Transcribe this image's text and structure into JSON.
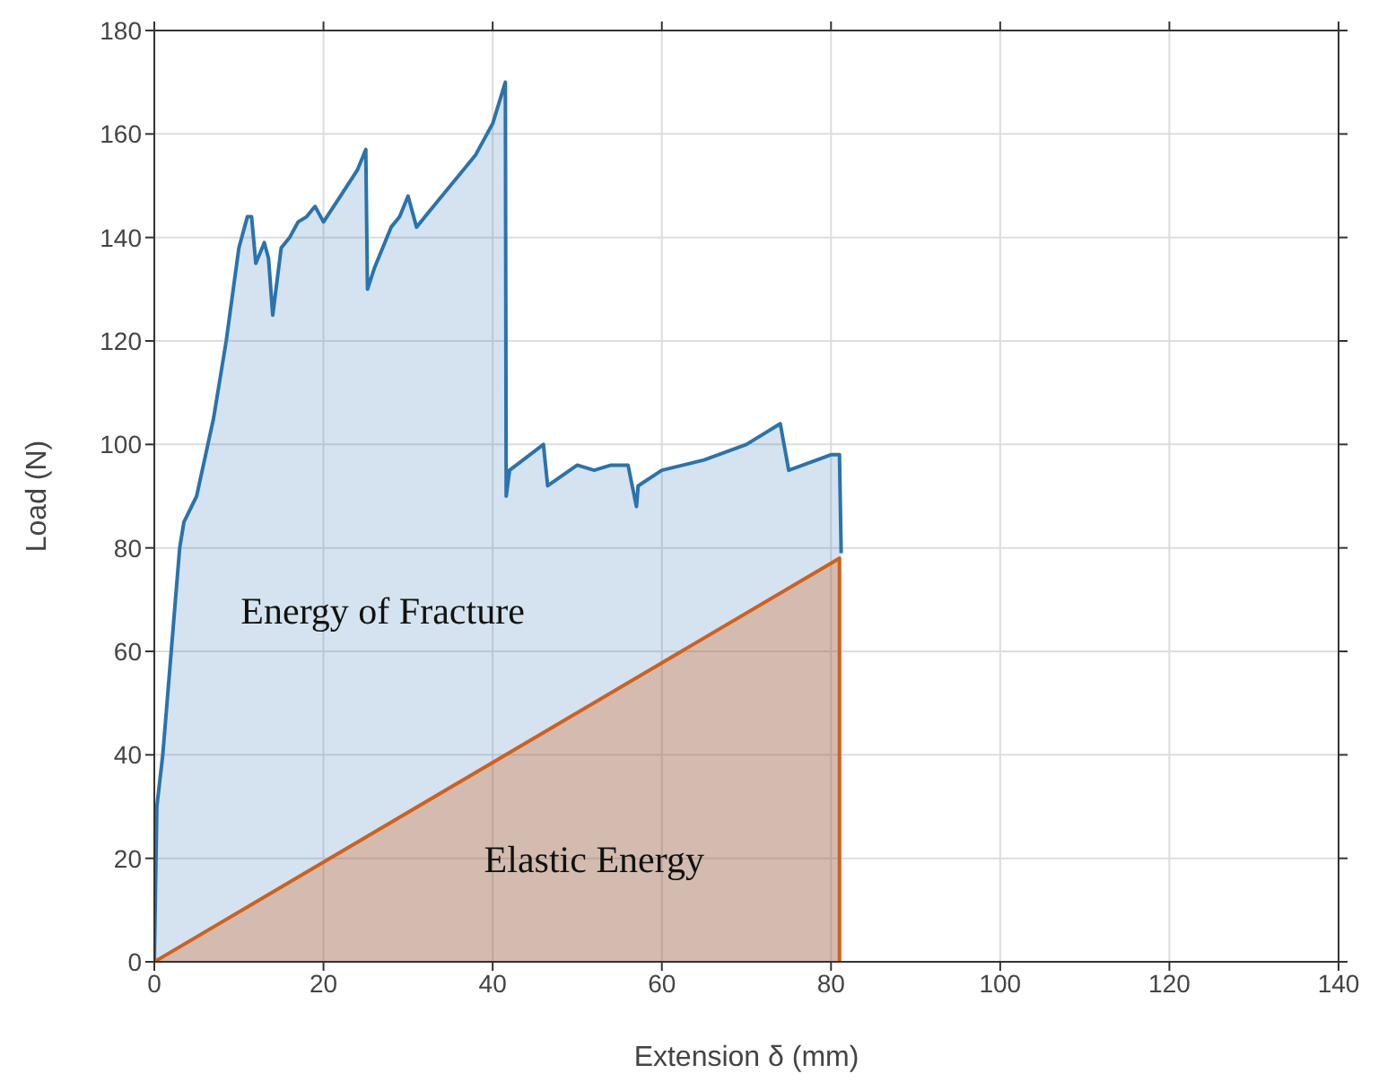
{
  "chart_data": {
    "type": "area",
    "xlabel": "Extension δ (mm)",
    "ylabel": "Load (N)",
    "xlim": [
      0,
      140
    ],
    "xticks": [
      0,
      20,
      40,
      60,
      80,
      100,
      120,
      140
    ],
    "ylim": [
      0,
      180
    ],
    "yticks": [
      0,
      20,
      40,
      60,
      80,
      100,
      120,
      140,
      160,
      180
    ],
    "grid": true,
    "marker": "none",
    "series": [
      {
        "color": "#2a73ad",
        "x": [
          0,
          0.3,
          1,
          2,
          3,
          3.5,
          5,
          7,
          8.5,
          10,
          11,
          11.5,
          12,
          13,
          13.5,
          14,
          15,
          16,
          17,
          18,
          19,
          20,
          22,
          24,
          25,
          25.2,
          26,
          28,
          29,
          30,
          31,
          33,
          36,
          38,
          40,
          41.5,
          41.6,
          42,
          46,
          46.5,
          50,
          52,
          54,
          56,
          57,
          57.2,
          60,
          65,
          70,
          74,
          75,
          80,
          81,
          81.2
        ],
        "values": [
          0,
          30,
          40,
          60,
          80,
          85,
          90,
          105,
          120,
          138,
          144,
          144,
          135,
          139,
          136,
          125,
          138,
          140,
          143,
          144,
          146,
          143,
          148,
          153,
          157,
          130,
          134,
          142,
          144,
          148,
          142,
          146,
          152,
          156,
          162,
          170,
          90,
          95,
          100,
          92,
          96,
          95,
          96,
          96,
          88,
          92,
          95,
          97,
          100,
          104,
          95,
          98,
          98,
          79
        ]
      },
      {
        "color": "#d0601c",
        "x": [
          0,
          81,
          81
        ],
        "values": [
          0,
          78,
          0
        ]
      }
    ],
    "annotations": [
      "Energy of Fracture",
      "Elastic Energy"
    ]
  }
}
